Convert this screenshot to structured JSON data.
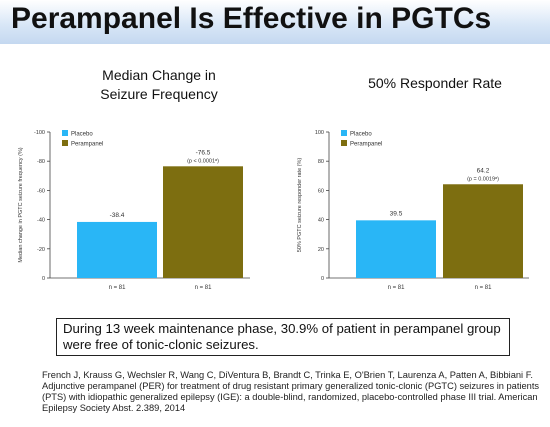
{
  "title": "Perampanel Is Effective in PGTCs",
  "chart_headings": [
    "Median Change in\nSeizure Frequency",
    "50% Responder Rate"
  ],
  "chart_data": [
    {
      "type": "bar",
      "ylabel": "Median change in PGTC seizure frequency (%)",
      "ylim": [
        0,
        100
      ],
      "yticks": [
        0,
        20,
        40,
        60,
        80,
        100
      ],
      "ytick_labels": [
        "0",
        "-20",
        "-40",
        "-60",
        "-80",
        "-100"
      ],
      "series": [
        {
          "name": "Placebo",
          "color": "#29b6f6",
          "value": 38.4,
          "label": "-38.4",
          "sub_label": "",
          "n_label": "n = 81"
        },
        {
          "name": "Perampanel",
          "color": "#7d6e10",
          "value": 76.5,
          "label": "-76.5",
          "sub_label": "(p < 0.0001ᵃ)",
          "n_label": "n = 81"
        }
      ],
      "legend_position": "top-left"
    },
    {
      "type": "bar",
      "ylabel": "50% PGTC seizure responder rate (%)",
      "ylim": [
        0,
        100
      ],
      "yticks": [
        0,
        20,
        40,
        60,
        80,
        100
      ],
      "ytick_labels": [
        "0",
        "20",
        "40",
        "60",
        "80",
        "100"
      ],
      "series": [
        {
          "name": "Placebo",
          "color": "#29b6f6",
          "value": 39.5,
          "label": "39.5",
          "sub_label": "",
          "n_label": "n = 81"
        },
        {
          "name": "Perampanel",
          "color": "#7d6e10",
          "value": 64.2,
          "label": "64.2",
          "sub_label": "(p = 0.0019ᵃ)",
          "n_label": "n = 81"
        }
      ],
      "legend_position": "top-left"
    }
  ],
  "summary": "During 13 week maintenance phase, 30.9% of patient in perampanel group were free of tonic-clonic seizures.",
  "citation": "French J, Krauss G, Wechsler R, Wang C, DiVentura B, Brandt C, Trinka E, O'Brien T, Laurenza A, Patten A, Bibbiani F. Adjunctive perampanel (PER) for treatment of drug resistant primary generalized tonic-clonic (PGTC) seizures in patients (PTS) with idiopathic generalized epilepsy (IGE): a double-blind, randomized, placebo-controlled phase III trial. American Epilepsy Society Abst. 2.389, 2014"
}
